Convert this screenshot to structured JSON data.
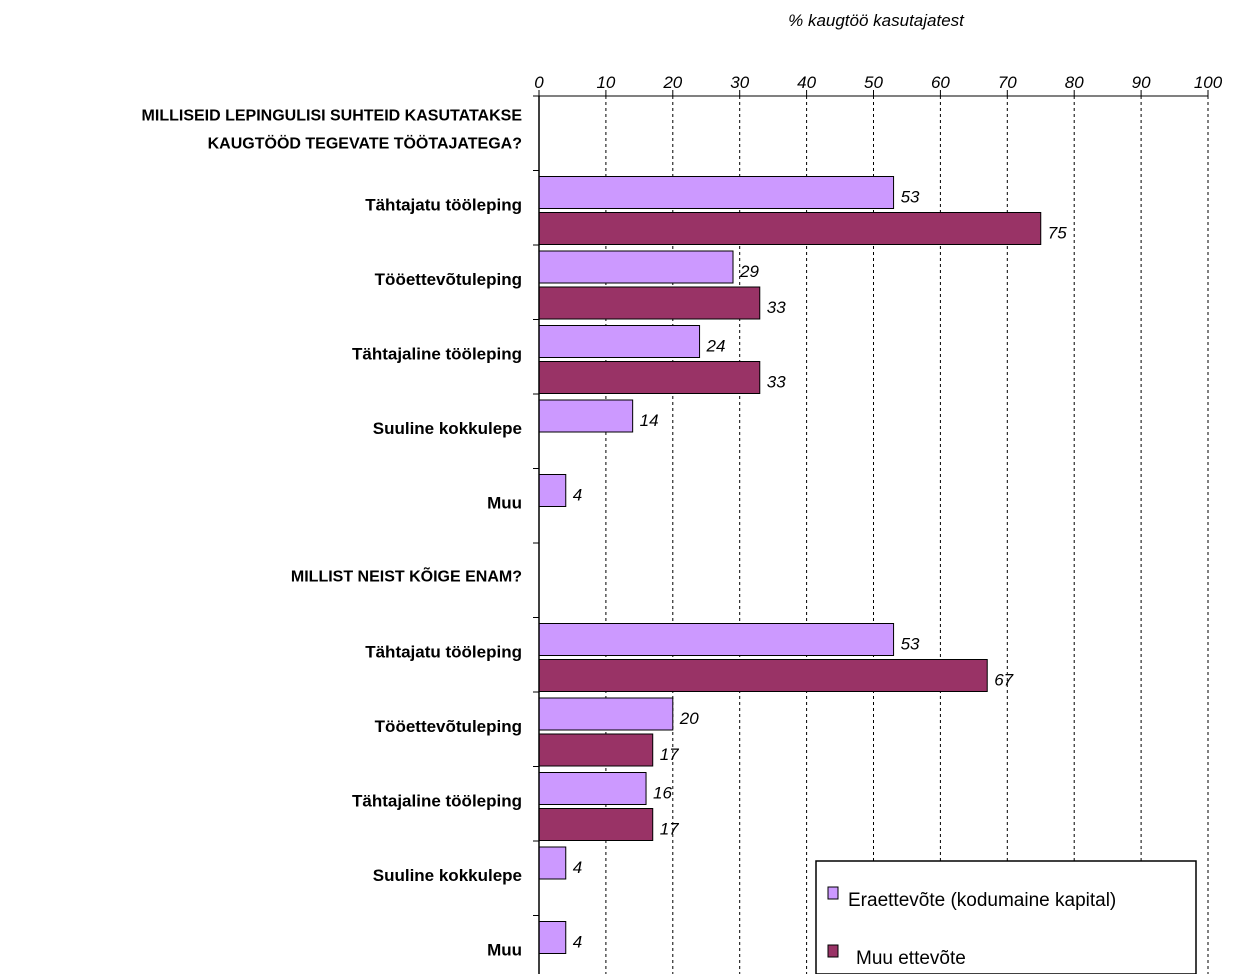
{
  "chart_data": {
    "type": "bar",
    "orientation": "horizontal",
    "xlabel": "% kaugtöö kasutajatest",
    "xlim": [
      0,
      100
    ],
    "xticks": [
      0,
      10,
      20,
      30,
      40,
      50,
      60,
      70,
      80,
      90,
      100
    ],
    "grid": "vertical dashed",
    "legend_position": "bottom-right",
    "series": [
      {
        "name": "Eraettevõte (kodumaine kapital)",
        "color": "#cc99ff"
      },
      {
        "name": "Muu ettevõte",
        "color": "#993366"
      }
    ],
    "groups": [
      {
        "heading_lines": [
          "MILLISEID LEPINGULISI SUHTEID KASUTATAKSE",
          "KAUGTÖÖD TEGEVATE TÖÖTAJATEGA?"
        ],
        "categories": [
          {
            "label": "Tähtajatu tööleping",
            "values": [
              53,
              75
            ]
          },
          {
            "label": "Tööettevõtuleping",
            "values": [
              29,
              33
            ]
          },
          {
            "label": "Tähtajaline tööleping",
            "values": [
              24,
              33
            ]
          },
          {
            "label": "Suuline kokkulepe",
            "values": [
              14,
              null
            ]
          },
          {
            "label": "Muu",
            "values": [
              4,
              null
            ]
          }
        ]
      },
      {
        "heading_lines": [
          "MILLIST NEIST KÕIGE ENAM?"
        ],
        "categories": [
          {
            "label": "Tähtajatu tööleping",
            "values": [
              53,
              67
            ]
          },
          {
            "label": "Tööettevõtuleping",
            "values": [
              20,
              17
            ]
          },
          {
            "label": "Tähtajaline tööleping",
            "values": [
              16,
              17
            ]
          },
          {
            "label": "Suuline kokkulepe",
            "values": [
              4,
              null
            ]
          },
          {
            "label": "Muu",
            "values": [
              4,
              null
            ]
          }
        ]
      }
    ]
  }
}
